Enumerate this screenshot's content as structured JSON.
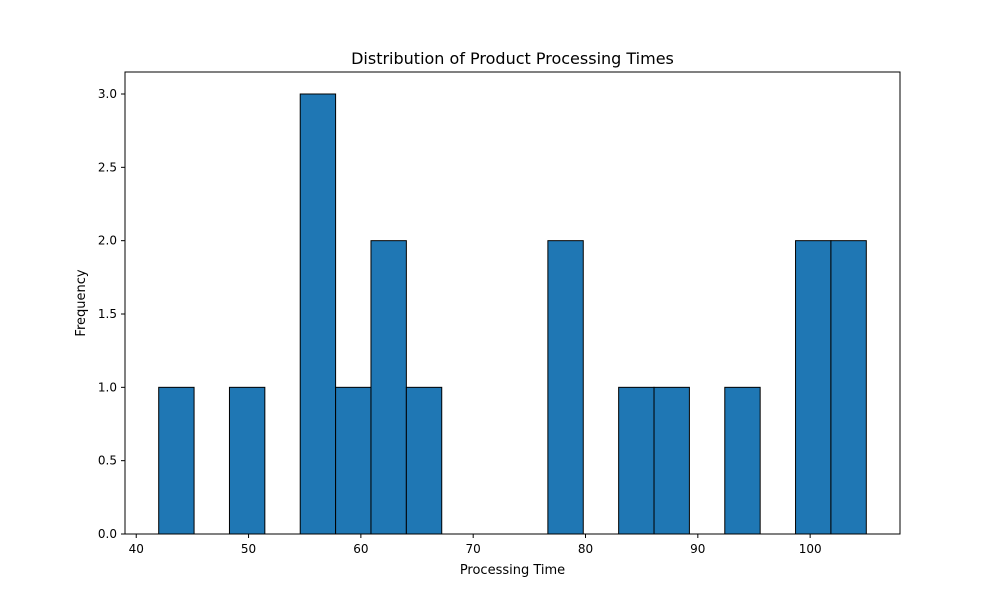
{
  "chart_data": {
    "type": "bar",
    "title": "Distribution of Product Processing Times",
    "xlabel": "Processing Time",
    "ylabel": "Frequency",
    "xlim": [
      39,
      108
    ],
    "ylim": [
      0,
      3.15
    ],
    "x_ticks": [
      40,
      50,
      60,
      70,
      80,
      90,
      100
    ],
    "y_ticks": [
      0.0,
      0.5,
      1.0,
      1.5,
      2.0,
      2.5,
      3.0
    ],
    "y_tick_labels": [
      "0.0",
      "0.5",
      "1.0",
      "1.5",
      "2.0",
      "2.5",
      "3.0"
    ],
    "bins": [
      {
        "start": 42.0,
        "end": 45.15,
        "count": 1
      },
      {
        "start": 45.15,
        "end": 48.3,
        "count": 0
      },
      {
        "start": 48.3,
        "end": 51.45,
        "count": 1
      },
      {
        "start": 51.45,
        "end": 54.6,
        "count": 0
      },
      {
        "start": 54.6,
        "end": 57.75,
        "count": 3
      },
      {
        "start": 57.75,
        "end": 60.9,
        "count": 1
      },
      {
        "start": 60.9,
        "end": 64.05,
        "count": 2
      },
      {
        "start": 64.05,
        "end": 67.2,
        "count": 1
      },
      {
        "start": 67.2,
        "end": 70.35,
        "count": 0
      },
      {
        "start": 70.35,
        "end": 73.5,
        "count": 0
      },
      {
        "start": 73.5,
        "end": 76.65,
        "count": 0
      },
      {
        "start": 76.65,
        "end": 79.8,
        "count": 2
      },
      {
        "start": 79.8,
        "end": 82.95,
        "count": 0
      },
      {
        "start": 82.95,
        "end": 86.1,
        "count": 1
      },
      {
        "start": 86.1,
        "end": 89.25,
        "count": 1
      },
      {
        "start": 89.25,
        "end": 92.4,
        "count": 0
      },
      {
        "start": 92.4,
        "end": 95.55,
        "count": 1
      },
      {
        "start": 95.55,
        "end": 98.7,
        "count": 0
      },
      {
        "start": 98.7,
        "end": 101.85,
        "count": 2
      },
      {
        "start": 101.85,
        "end": 105.0,
        "count": 2
      }
    ],
    "grid": false,
    "colors": {
      "bar": "#1f77b4",
      "edge": "#000000"
    }
  }
}
